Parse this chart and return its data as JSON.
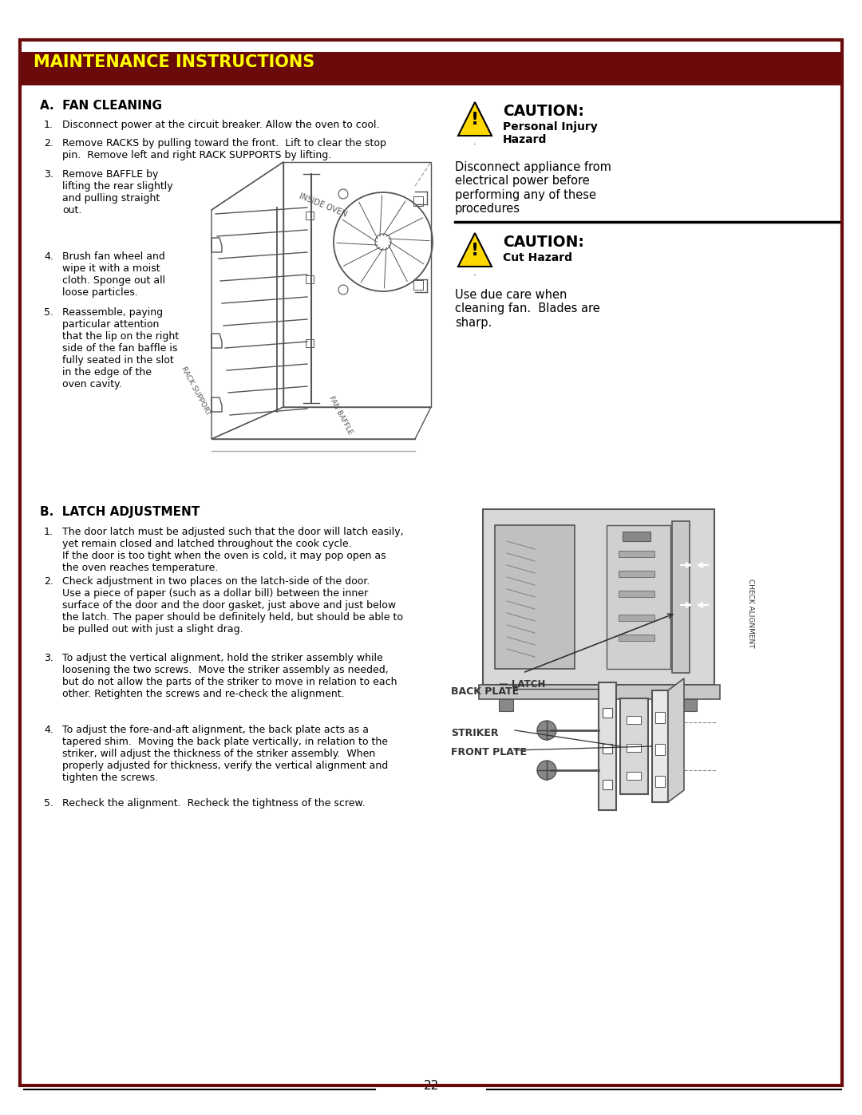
{
  "page_bg": "#ffffff",
  "border_color": "#6b0a0a",
  "header_bg": "#6b0a0a",
  "header_text": "MAINTENANCE INSTRUCTIONS",
  "header_text_color": "#ffff00",
  "section_a_title": "A.  FAN CLEANING",
  "section_b_title": "B.  LATCH ADJUSTMENT",
  "fan_steps": [
    "Disconnect power at the circuit breaker. Allow the oven to cool.",
    "Remove RACKS by pulling toward the front.  Lift to clear the stop\npin.  Remove left and right RACK SUPPORTS by lifting.",
    "Remove BAFFLE by\nlifting the rear slightly\nand pulling straight\nout.",
    "Brush fan wheel and\nwipe it with a moist\ncloth. Sponge out all\nloose particles.",
    "Reassemble, paying\nparticular attention\nthat the lip on the right\nside of the fan baffle is\nfully seated in the slot\nin the edge of the\noven cavity."
  ],
  "latch_steps": [
    "The door latch must be adjusted such that the door will latch easily,\nyet remain closed and latched throughout the cook cycle.\nIf the door is too tight when the oven is cold, it may pop open as\nthe oven reaches temperature.",
    "Check adjustment in two places on the latch-side of the door.\nUse a piece of paper (such as a dollar bill) between the inner\nsurface of the door and the door gasket, just above and just below\nthe latch. The paper should be definitely held, but should be able to\nbe pulled out with just a slight drag.",
    "To adjust the vertical alignment, hold the striker assembly while\nloosening the two screws.  Move the striker assembly as needed,\nbut do not allow the parts of the striker to move in relation to each\nother. Retighten the screws and re-check the alignment.",
    "To adjust the fore-and-aft alignment, the back plate acts as a\ntapered shim.  Moving the back plate vertically, in relation to the\nstriker, will adjust the thickness of the striker assembly.  When\nproperly adjusted for thickness, verify the vertical alignment and\ntighten the screws.",
    "Recheck the alignment.  Recheck the tightness of the screw."
  ],
  "caution1_title": "CAUTION:",
  "caution1_sub": "Personal Injury\nHazard",
  "caution1_body": "Disconnect appliance from\nelectrical power before\nperforming any of these\nprocedures",
  "caution2_title": "CAUTION:",
  "caution2_sub": "Cut Hazard",
  "caution2_body": "Use due care when\ncleaning fan.  Blades are\nsharp.",
  "page_number": "22",
  "dark_red": "#6b0a0a",
  "text_color": "#000000",
  "body_font_size": 9.0,
  "title_font_size": 11.0
}
